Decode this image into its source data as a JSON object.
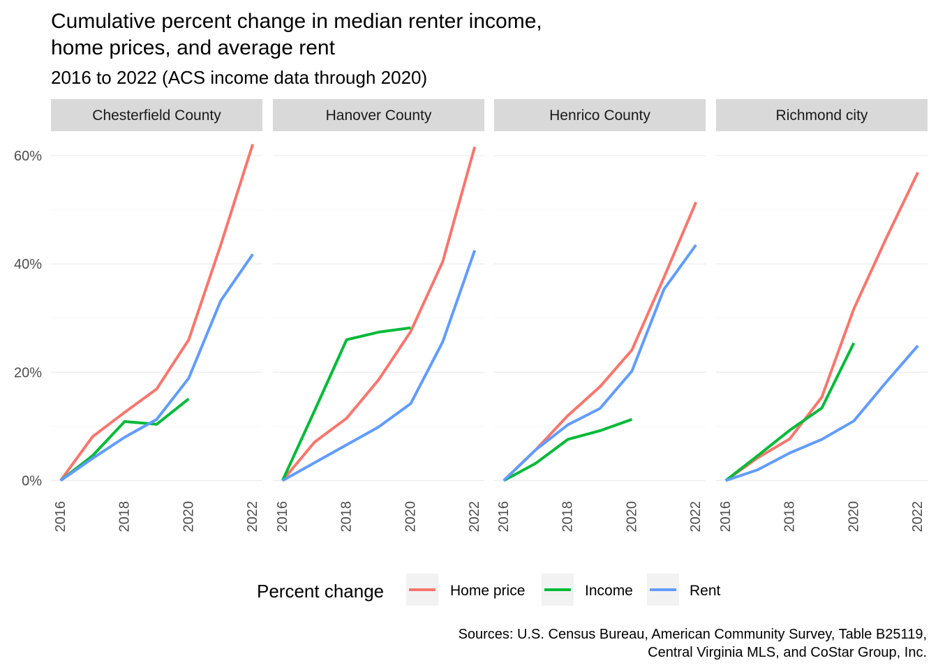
{
  "title_line1": "Cumulative percent change in median renter income,",
  "title_line2": "home prices, and average rent",
  "subtitle": "2016 to 2022 (ACS income data through 2020)",
  "caption_line1": "Sources: U.S. Census Bureau, American Community Survey, Table B25119,",
  "caption_line2": "Central Virginia MLS, and CoStar Group, Inc.",
  "chart_data": {
    "type": "line",
    "title": "Cumulative percent change in median renter income, home prices, and average rent",
    "subtitle": "2016 to 2022 (ACS income data through 2020)",
    "xlabel": "",
    "ylabel": "",
    "x_ticks": [
      2016,
      2018,
      2020,
      2022
    ],
    "xlim": [
      2016,
      2022
    ],
    "y_ticks": [
      0,
      20,
      40,
      60
    ],
    "y_tick_labels": [
      "0%",
      "20%",
      "40%",
      "60%"
    ],
    "ylim": [
      -2.5,
      64.5
    ],
    "grid": true,
    "legend": {
      "title": "Percent change",
      "position": "bottom",
      "entries": [
        {
          "name": "Home price",
          "color": "#F8766D"
        },
        {
          "name": "Income",
          "color": "#00BA38"
        },
        {
          "name": "Rent",
          "color": "#619CFF"
        }
      ]
    },
    "panels": [
      {
        "name": "Chesterfield County",
        "series": [
          {
            "name": "Home price",
            "x": [
              2016,
              2017,
              2018,
              2019,
              2020,
              2021,
              2022
            ],
            "y": [
              0,
              8.1,
              12.6,
              16.9,
              26,
              43.5,
              62.1
            ]
          },
          {
            "name": "Income",
            "x": [
              2016,
              2017,
              2018,
              2019,
              2020
            ],
            "y": [
              0,
              4.6,
              10.9,
              10.4,
              15.1
            ]
          },
          {
            "name": "Rent",
            "x": [
              2016,
              2017,
              2018,
              2019,
              2020,
              2021,
              2022
            ],
            "y": [
              0,
              4.1,
              8,
              11.3,
              18.9,
              33.2,
              41.8
            ]
          }
        ]
      },
      {
        "name": "Hanover County",
        "series": [
          {
            "name": "Home price",
            "x": [
              2016,
              2017,
              2018,
              2019,
              2020,
              2021,
              2022
            ],
            "y": [
              0,
              7.1,
              11.5,
              18.6,
              27.5,
              40.4,
              61.6
            ]
          },
          {
            "name": "Income",
            "x": [
              2016,
              2017,
              2018,
              2019,
              2020
            ],
            "y": [
              0,
              12.9,
              26,
              27.4,
              28.2
            ]
          },
          {
            "name": "Rent",
            "x": [
              2016,
              2017,
              2018,
              2019,
              2020,
              2021,
              2022
            ],
            "y": [
              0,
              3.3,
              6.6,
              9.9,
              14.2,
              25.6,
              42.5
            ]
          }
        ]
      },
      {
        "name": "Henrico County",
        "series": [
          {
            "name": "Home price",
            "x": [
              2016,
              2017,
              2018,
              2019,
              2020,
              2021,
              2022
            ],
            "y": [
              0,
              5.7,
              12,
              17.3,
              24.1,
              37.5,
              51.4
            ]
          },
          {
            "name": "Income",
            "x": [
              2016,
              2017,
              2018,
              2019,
              2020
            ],
            "y": [
              0,
              3.2,
              7.6,
              9.2,
              11.3
            ]
          },
          {
            "name": "Rent",
            "x": [
              2016,
              2017,
              2018,
              2019,
              2020,
              2021,
              2022
            ],
            "y": [
              0,
              5.7,
              10.3,
              13.3,
              20.2,
              35.3,
              43.5
            ]
          }
        ]
      },
      {
        "name": "Richmond city",
        "series": [
          {
            "name": "Home price",
            "x": [
              2016,
              2017,
              2018,
              2019,
              2020,
              2021,
              2022
            ],
            "y": [
              0,
              4.2,
              7.7,
              15.4,
              31.7,
              44.6,
              56.9
            ]
          },
          {
            "name": "Income",
            "x": [
              2016,
              2017,
              2018,
              2019,
              2020
            ],
            "y": [
              0,
              4.6,
              9.3,
              13.4,
              25.4
            ]
          },
          {
            "name": "Rent",
            "x": [
              2016,
              2017,
              2018,
              2019,
              2020,
              2021,
              2022
            ],
            "y": [
              0,
              2,
              5.1,
              7.6,
              11,
              18.1,
              24.9
            ]
          }
        ]
      }
    ]
  }
}
